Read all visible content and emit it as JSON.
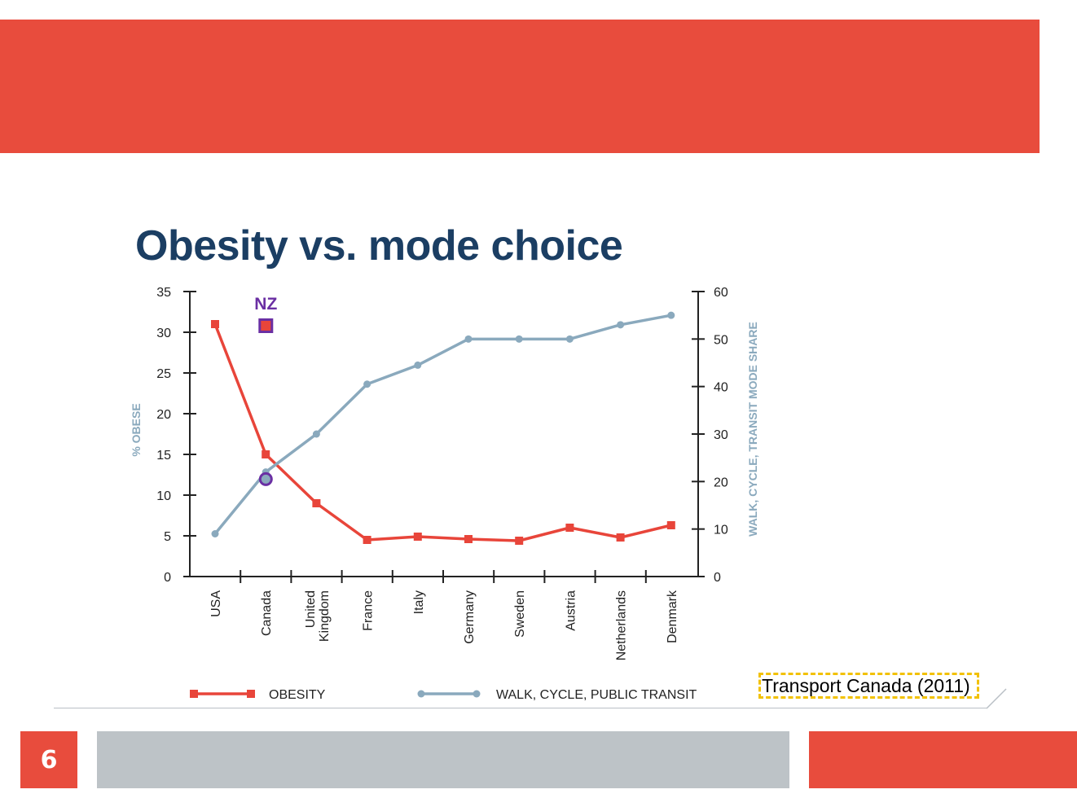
{
  "slide": {
    "title": "Obesity vs. mode choice",
    "page_number": "6",
    "source": "Transport Canada (2011)",
    "colors": {
      "accent": "#e84c3d",
      "title": "#1b3e63",
      "footer_grey": "#bdc3c7",
      "source_highlight": "#f2c100"
    }
  },
  "chart_data": {
    "type": "line",
    "categories": [
      "USA",
      "Canada",
      "United Kingdom",
      "France",
      "Italy",
      "Germany",
      "Sweden",
      "Austria",
      "Netherlands",
      "Denmark"
    ],
    "category_label_lines": [
      [
        "USA"
      ],
      [
        "Canada"
      ],
      [
        "United",
        "Kingdom"
      ],
      [
        "France"
      ],
      [
        "Italy"
      ],
      [
        "Germany"
      ],
      [
        "Sweden"
      ],
      [
        "Austria"
      ],
      [
        "Netherlands"
      ],
      [
        "Denmark"
      ]
    ],
    "series": [
      {
        "name": "OBESITY",
        "axis": "left",
        "color": "#e8453a",
        "marker": "square",
        "values": [
          31.0,
          15.0,
          9.0,
          4.5,
          4.9,
          4.6,
          4.4,
          6.0,
          4.8,
          6.3
        ]
      },
      {
        "name": "WALK, CYCLE, PUBLIC TRANSIT",
        "axis": "right",
        "color": "#8aa9bd",
        "marker": "circle",
        "values": [
          9.0,
          22.0,
          30.0,
          40.5,
          44.5,
          50.0,
          50.0,
          50.0,
          53.0,
          55.0
        ]
      }
    ],
    "annotations": [
      {
        "label": "NZ",
        "series": "OBESITY",
        "position": 1.5,
        "value": 30.8,
        "color": "#6a2fa3"
      },
      {
        "label": "",
        "series": "WALK, CYCLE, PUBLIC TRANSIT",
        "position": 1.5,
        "value": 20.5,
        "color": "#6a2fa3"
      }
    ],
    "ylabel": "% OBESE",
    "ylabel_right": "WALK, CYCLE, TRANSIT MODE SHARE",
    "ylim": [
      0,
      35
    ],
    "yticks": [
      0,
      5,
      10,
      15,
      20,
      25,
      30,
      35
    ],
    "ylim_right": [
      0,
      60
    ],
    "yticks_right": [
      0,
      10,
      20,
      30,
      40,
      50,
      60
    ],
    "grid": false,
    "legend": "bottom"
  }
}
